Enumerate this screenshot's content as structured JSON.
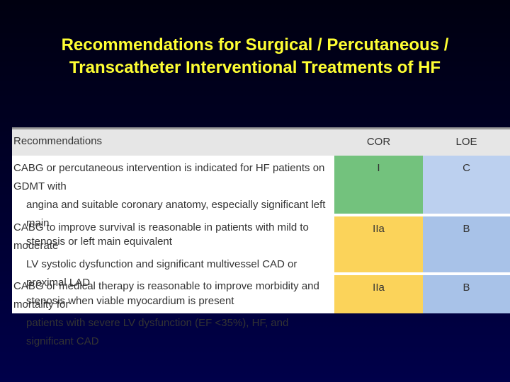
{
  "title": [
    "Recommendations for Surgical / Percutaneous /",
    "Transcatheter Interventional Treatments of HF"
  ],
  "table": {
    "header": [
      "Recommendations",
      "COR",
      "LOE"
    ],
    "rows": [
      [
        [
          "CABG or percutaneous intervention is indicated for HF patients on GDMT with",
          "angina and suitable coronary anatomy, especially significant left main",
          "stenosis or left main equivalent"
        ],
        "I",
        "C"
      ],
      [
        [
          "CABG to improve survival is reasonable in patients with mild to moderate",
          "LV systolic dysfunction and significant multivessel CAD or proximal LAD",
          "stenosis when viable myocardium is present"
        ],
        "IIa",
        "B"
      ],
      [
        [
          "CABG or medical therapy is reasonable to improve morbidity and mortality for",
          "patients with severe LV dysfunction (EF <35%), HF, and significant CAD"
        ],
        "IIa",
        "B"
      ]
    ]
  }
}
